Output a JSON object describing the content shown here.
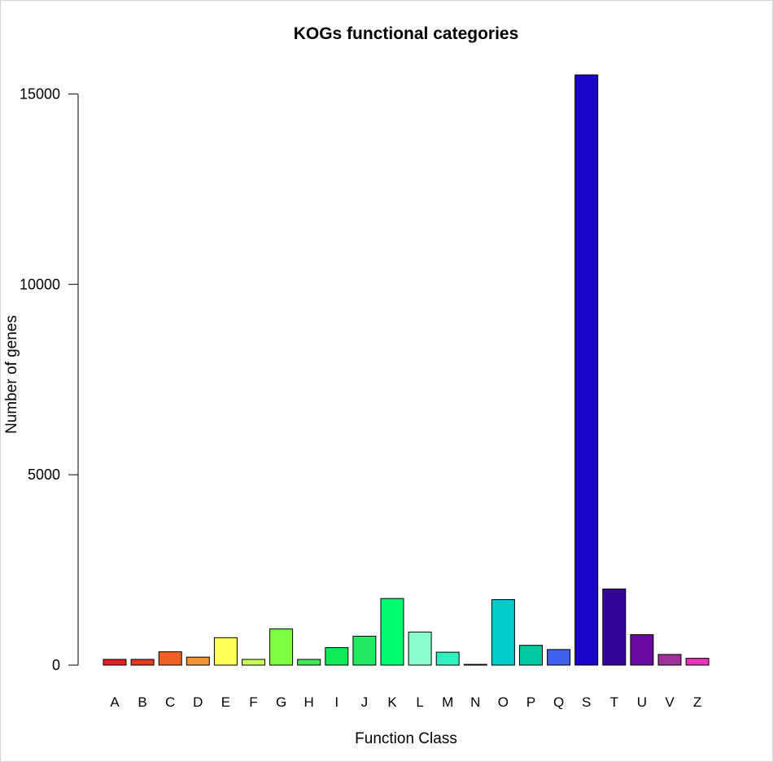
{
  "chart_data": {
    "type": "bar",
    "title": "KOGs functional categories",
    "xlabel": "Function Class",
    "ylabel": "Number of genes",
    "ylim": [
      0,
      15500
    ],
    "yticks": [
      0,
      5000,
      10000,
      15000
    ],
    "grid": false,
    "categories": [
      "A",
      "B",
      "C",
      "D",
      "E",
      "F",
      "G",
      "H",
      "I",
      "J",
      "K",
      "L",
      "M",
      "N",
      "O",
      "P",
      "Q",
      "S",
      "T",
      "U",
      "V",
      "Z"
    ],
    "values": [
      150,
      150,
      350,
      210,
      720,
      150,
      950,
      150,
      460,
      760,
      1750,
      870,
      340,
      20,
      1720,
      520,
      410,
      15500,
      2000,
      800,
      280,
      180
    ],
    "colors": [
      "#ea2020",
      "#e93820",
      "#f06020",
      "#f29236",
      "#ffff55",
      "#c8ff55",
      "#80ff40",
      "#40ea55",
      "#10ea55",
      "#20ea60",
      "#00ff70",
      "#88ffcc",
      "#30f0c0",
      "#18b0a8",
      "#00cccc",
      "#00c8a0",
      "#4060ee",
      "#1a06c8",
      "#35069a",
      "#6a0aa0",
      "#a0309a",
      "#f030c0"
    ]
  }
}
